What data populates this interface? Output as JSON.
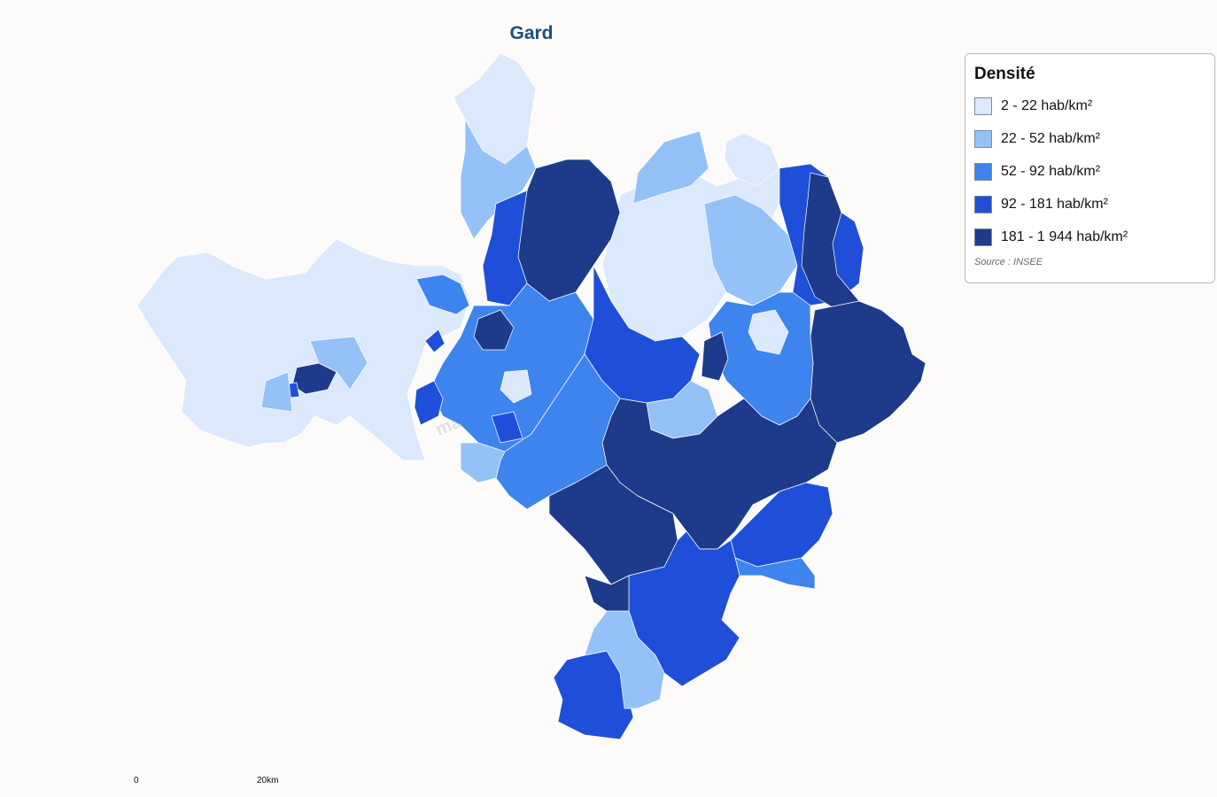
{
  "title": "Gard",
  "legend": {
    "title": "Densité",
    "classes": [
      {
        "label": "2 - 22 hab/km²",
        "color": "#dce8fb"
      },
      {
        "label": "22 - 52 hab/km²",
        "color": "#94c1f7"
      },
      {
        "label": "52 - 92 hab/km²",
        "color": "#3d84ee"
      },
      {
        "label": "92 - 181 hab/km²",
        "color": "#1f4fd8"
      },
      {
        "label": "181 - 1 944 hab/km²",
        "color": "#1e3a8a"
      }
    ],
    "source": "Source : INSEE"
  },
  "scale_bar": {
    "start_label": "0",
    "end_label": "20km"
  },
  "watermark": "ma"
}
